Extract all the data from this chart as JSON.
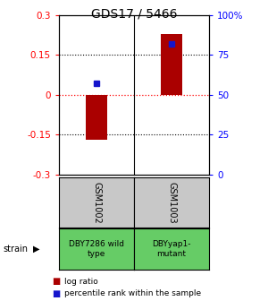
{
  "title": "GDS17 / 5466",
  "samples": [
    "GSM1002",
    "GSM1003"
  ],
  "strains": [
    "DBY7286 wild\ntype",
    "DBYyap1-\nmutant"
  ],
  "log_ratios": [
    -0.17,
    0.23
  ],
  "percentile_rank_values": [
    57,
    82
  ],
  "ylim_log": [
    -0.3,
    0.3
  ],
  "ylim_pct": [
    0,
    100
  ],
  "yticks_log": [
    -0.3,
    -0.15,
    0,
    0.15,
    0.3
  ],
  "yticks_pct": [
    0,
    25,
    50,
    75,
    100
  ],
  "ytick_labels_log": [
    "-0.3",
    "-0.15",
    "0",
    "0.15",
    "0.3"
  ],
  "ytick_labels_pct": [
    "0",
    "25",
    "50",
    "75",
    "100%"
  ],
  "bar_color": "#AA0000",
  "square_color": "#1515CC",
  "gray_bg": "#C8C8C8",
  "green_bg": "#66CC66",
  "label_log": "log ratio",
  "label_pct": "percentile rank within the sample",
  "strain_label": "strain"
}
